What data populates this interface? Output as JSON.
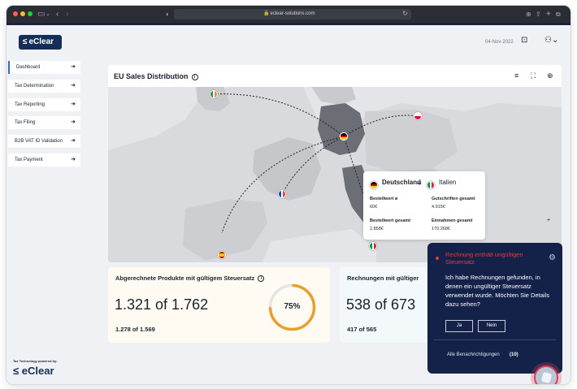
{
  "browser": {
    "url": "eclear-solutions.com",
    "traffic_colors": [
      "#ff5f57",
      "#febc2e",
      "#28c840"
    ]
  },
  "header": {
    "logo": "eClear",
    "date": "04-Nov-2022"
  },
  "sidebar": {
    "items": [
      {
        "label": "Dashboard",
        "active": true
      },
      {
        "label": "Tax Determination"
      },
      {
        "label": "Tax Reporting"
      },
      {
        "label": "Tax Filing"
      },
      {
        "label": "B2B VAT ID Validation"
      },
      {
        "label": "Tax Payment"
      }
    ],
    "powered_by": "Tax Technology powered by:",
    "footer_logo": "eClear"
  },
  "map": {
    "title": "EU Sales Distribution",
    "tooltip": {
      "from": "Deutschland",
      "to": "Italien",
      "cells": [
        {
          "label": "Bestellwert ø",
          "value": "60€"
        },
        {
          "label": "Gutschriften gesamt",
          "value": "4.915€"
        },
        {
          "label": "Bestellwert gesamt",
          "value": "2.858€"
        },
        {
          "label": "Einnahmen gesamt",
          "value": "170.268€"
        }
      ]
    }
  },
  "kpis": [
    {
      "title": "Abgerechnete Produkte mit gültigem Steuersatz",
      "big": "1.321 of 1.762",
      "small": "1.278 of 1.569",
      "percent_label": "75%",
      "percent": 75
    },
    {
      "title": "Rechnungen mit gültiger",
      "big": "538 of 673",
      "small": "417 of 565"
    }
  ],
  "notification": {
    "title": "Rechnung enthält ungültigen Steuersatz",
    "body": "Ich habe Rechnungen gefunden, in denen ein ungültiger Steuersatz verwendet wurde. Möchten Sie Details dazu sehen?",
    "yes": "Ja",
    "no": "Nein",
    "all_label": "Alle Benachrichtigungen",
    "count": "(10)"
  },
  "colors": {
    "brand": "#152e57",
    "accent": "#e8a02c",
    "alert": "#e23b3b"
  }
}
